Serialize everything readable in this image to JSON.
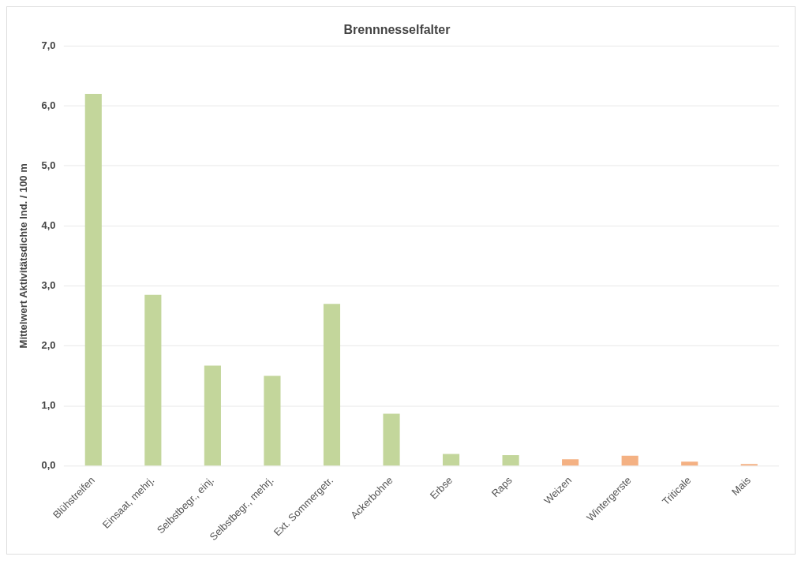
{
  "chart_data": {
    "type": "bar",
    "title": "Brennnesselfalter",
    "ylabel": "Mittelwert Aktivitätsdichte Ind. / 100 m",
    "categories": [
      "Blühstreifen",
      "Einsaat, mehrj.",
      "Selbstbegr., einj.",
      "Selbstbegr., mehrj.",
      "Ext. Sommergetr.",
      "Ackerbohne",
      "Erbse",
      "Raps",
      "Weizen",
      "Wintergerste",
      "Triticale",
      "Mais"
    ],
    "values": [
      6.2,
      2.85,
      1.67,
      1.5,
      2.7,
      0.87,
      0.2,
      0.18,
      0.11,
      0.17,
      0.07,
      0.03
    ],
    "colors": [
      "#c3d69b",
      "#c3d69b",
      "#c3d69b",
      "#c3d69b",
      "#c3d69b",
      "#c3d69b",
      "#c3d69b",
      "#c3d69b",
      "#f4b183",
      "#f4b183",
      "#f4b183",
      "#f4b183"
    ],
    "ylim": [
      0,
      7
    ],
    "yticks": [
      {
        "value": 0,
        "label": "0,0"
      },
      {
        "value": 1,
        "label": "1,0"
      },
      {
        "value": 2,
        "label": "2,0"
      },
      {
        "value": 3,
        "label": "3,0"
      },
      {
        "value": 4,
        "label": "4,0"
      },
      {
        "value": 5,
        "label": "5,0"
      },
      {
        "value": 6,
        "label": "6,0"
      },
      {
        "value": 7,
        "label": "7,0"
      }
    ],
    "grid": "y",
    "legend": false
  }
}
